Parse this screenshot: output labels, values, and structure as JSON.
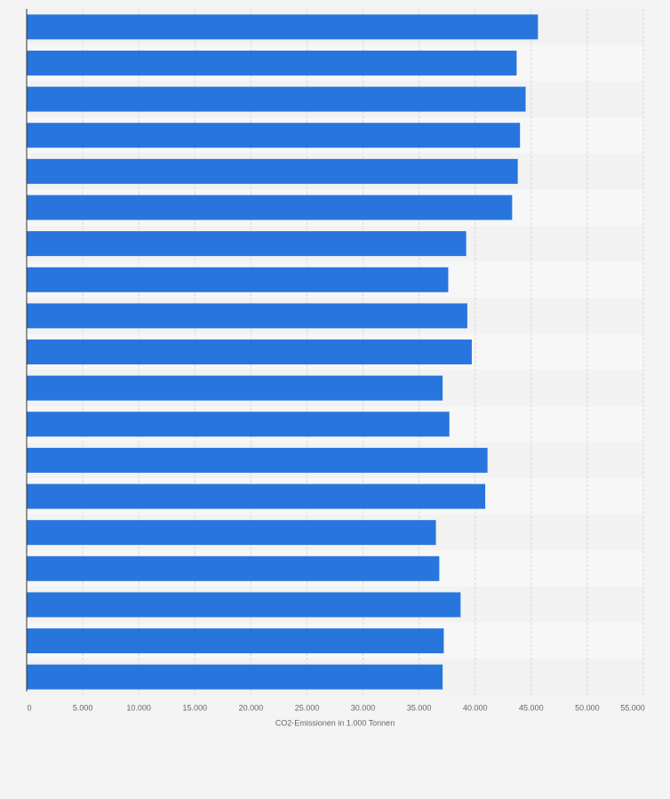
{
  "chart_data": {
    "type": "bar",
    "orientation": "horizontal",
    "xlabel": "CO2-Emissionen in 1.000 Tonnen",
    "categories": [
      null,
      null,
      null,
      null,
      null,
      null,
      null,
      null,
      null,
      null,
      null,
      null,
      null,
      null,
      null,
      null,
      null,
      null,
      null
    ],
    "values": [
      45600,
      43700,
      44500,
      44000,
      43800,
      43300,
      39200,
      37600,
      39300,
      39700,
      37100,
      37700,
      41100,
      40900,
      36500,
      36800,
      38700,
      37200,
      37100
    ],
    "color": "#2876dd",
    "xlim": [
      0,
      55000
    ],
    "xticks": [
      0,
      {
        "value": 5000,
        "label": "5.000"
      },
      {
        "value": 10000,
        "label": "10.000"
      },
      {
        "value": 15000,
        "label": "15.000"
      },
      {
        "value": 20000,
        "label": "20.000"
      },
      {
        "value": 25000,
        "label": "25.000"
      },
      {
        "value": 30000,
        "label": "30.000"
      },
      {
        "value": 35000,
        "label": "35.000"
      },
      {
        "value": 40000,
        "label": "40.000"
      },
      {
        "value": 45000,
        "label": "45.000"
      },
      {
        "value": 50000,
        "label": "50.000"
      },
      {
        "value": 55000,
        "label": "55.000"
      }
    ],
    "grid": true
  }
}
